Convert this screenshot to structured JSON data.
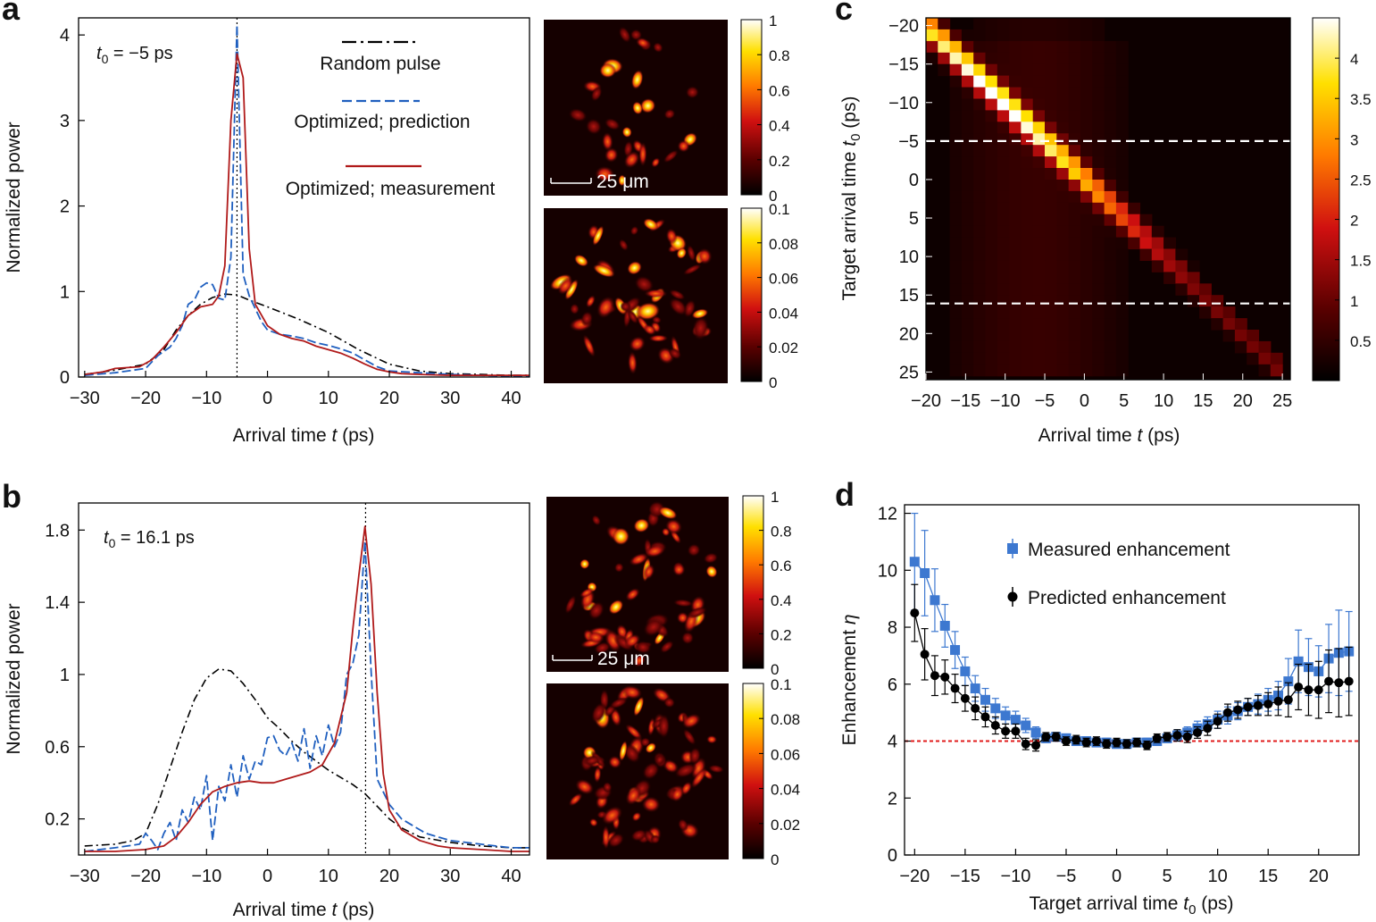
{
  "panels": [
    "a",
    "b",
    "c",
    "d"
  ],
  "chart_data": [
    {
      "panel": "a",
      "type": "line",
      "annotation_prefix": "t",
      "annotation_sub": "0",
      "annotation_value": " = −5 ps",
      "xlabel_main": "Arrival time ",
      "xlabel_var": "t",
      "xlabel_unit": " (ps)",
      "ylabel": "Normalized power",
      "xlim": [
        -31,
        43
      ],
      "ylim": [
        0,
        4.2
      ],
      "xticks": [
        -30,
        -20,
        -10,
        0,
        10,
        20,
        30,
        40
      ],
      "yticks": [
        0,
        1,
        2,
        3,
        4
      ],
      "xtick_labels": [
        "−30",
        "−20",
        "−10",
        "0",
        "10",
        "20",
        "30",
        "40"
      ],
      "ytick_labels": [
        "0",
        "1",
        "2",
        "3",
        "4"
      ],
      "marker_line_x": -5,
      "legend": [
        "Random pulse",
        "Optimized; prediction",
        "Optimized; measurement"
      ],
      "series": [
        {
          "name": "Random pulse",
          "style": "dashdot",
          "color": "#000000",
          "x": [
            -30,
            -25,
            -20,
            -17,
            -15,
            -13,
            -11,
            -9,
            -7,
            -5,
            -3,
            0,
            5,
            10,
            15,
            20,
            25,
            30,
            35,
            40,
            43
          ],
          "y": [
            0.03,
            0.08,
            0.15,
            0.32,
            0.55,
            0.72,
            0.85,
            0.93,
            0.97,
            0.96,
            0.9,
            0.82,
            0.68,
            0.52,
            0.32,
            0.15,
            0.07,
            0.04,
            0.03,
            0.02,
            0.02
          ]
        },
        {
          "name": "Optimized; prediction",
          "style": "dashed",
          "color": "#1f5fbf",
          "x": [
            -30,
            -25,
            -20,
            -18,
            -16,
            -15,
            -14,
            -13,
            -12,
            -11,
            -10,
            -9,
            -8,
            -7,
            -6,
            -5,
            -4,
            -3,
            -2,
            -1,
            0,
            2,
            4,
            6,
            8,
            10,
            12,
            14,
            16,
            18,
            20,
            25,
            30,
            35,
            40,
            43
          ],
          "y": [
            0.02,
            0.05,
            0.1,
            0.25,
            0.35,
            0.45,
            0.6,
            0.85,
            0.9,
            1.05,
            1.1,
            1.08,
            0.92,
            0.9,
            1.4,
            4.12,
            1.2,
            0.95,
            0.8,
            0.65,
            0.55,
            0.5,
            0.48,
            0.45,
            0.4,
            0.37,
            0.33,
            0.28,
            0.2,
            0.12,
            0.07,
            0.05,
            0.03,
            0.02,
            0.01,
            0.01
          ]
        },
        {
          "name": "Optimized; measurement",
          "style": "solid",
          "color": "#b01a1a",
          "x": [
            -30,
            -27,
            -25,
            -21,
            -19,
            -17,
            -15,
            -13,
            -11,
            -9,
            -8,
            -7,
            -6,
            -5,
            -4,
            -3,
            -2,
            0,
            2,
            4,
            6,
            8,
            10,
            12,
            14,
            16,
            18,
            20,
            22,
            25,
            30,
            35,
            40,
            43
          ],
          "y": [
            0.03,
            0.06,
            0.1,
            0.12,
            0.2,
            0.35,
            0.52,
            0.72,
            0.82,
            0.85,
            0.95,
            1.3,
            3.0,
            3.78,
            3.5,
            1.5,
            0.85,
            0.6,
            0.5,
            0.45,
            0.42,
            0.36,
            0.32,
            0.28,
            0.22,
            0.15,
            0.09,
            0.06,
            0.04,
            0.03,
            0.02,
            0.02,
            0.02,
            0.02
          ]
        }
      ]
    },
    {
      "panel": "b",
      "type": "line",
      "annotation_prefix": "t",
      "annotation_sub": "0",
      "annotation_value": " = 16.1 ps",
      "xlabel_main": "Arrival time ",
      "xlabel_var": "t",
      "xlabel_unit": " (ps)",
      "ylabel": "Normalized power",
      "xlim": [
        -31,
        43
      ],
      "ylim": [
        0,
        1.95
      ],
      "xticks": [
        -30,
        -20,
        -10,
        0,
        10,
        20,
        30,
        40
      ],
      "yticks": [
        0.2,
        0.6,
        1,
        1.4,
        1.8
      ],
      "xtick_labels": [
        "−30",
        "−20",
        "−10",
        "0",
        "10",
        "20",
        "30",
        "40"
      ],
      "ytick_labels": [
        "0.2",
        "0.6",
        "1",
        "1.4",
        "1.8"
      ],
      "marker_line_x": 16.1,
      "series": [
        {
          "name": "Random pulse",
          "style": "dashdot",
          "color": "#000000",
          "x": [
            -30,
            -25,
            -22,
            -20,
            -18,
            -16,
            -14,
            -12,
            -10,
            -8,
            -6,
            -4,
            -2,
            0,
            2,
            4,
            6,
            8,
            10,
            12,
            14,
            16,
            18,
            20,
            22,
            25,
            30,
            35,
            40,
            43
          ],
          "y": [
            0.05,
            0.06,
            0.08,
            0.12,
            0.28,
            0.48,
            0.68,
            0.86,
            0.98,
            1.03,
            1.02,
            0.95,
            0.86,
            0.76,
            0.7,
            0.63,
            0.57,
            0.52,
            0.47,
            0.43,
            0.39,
            0.34,
            0.27,
            0.2,
            0.15,
            0.1,
            0.07,
            0.05,
            0.04,
            0.04
          ]
        },
        {
          "name": "Optimized; prediction",
          "style": "dashed",
          "color": "#1f5fbf",
          "x": [
            -30,
            -25,
            -21,
            -20,
            -19,
            -18,
            -17,
            -16,
            -15,
            -14,
            -13,
            -12,
            -11,
            -10,
            -9,
            -8,
            -7,
            -6,
            -5,
            -4,
            -3,
            -2,
            -1,
            0,
            1,
            2,
            3,
            4,
            5,
            6,
            7,
            8,
            9,
            10,
            11,
            12,
            13,
            14,
            15,
            16,
            17,
            18,
            19,
            20,
            22,
            24,
            26,
            28,
            30,
            35,
            40,
            43
          ],
          "y": [
            0.02,
            0.04,
            0.06,
            0.12,
            0.08,
            0.03,
            0.12,
            0.18,
            0.08,
            0.25,
            0.18,
            0.32,
            0.25,
            0.44,
            0.08,
            0.38,
            0.3,
            0.5,
            0.32,
            0.55,
            0.42,
            0.52,
            0.5,
            0.65,
            0.66,
            0.58,
            0.55,
            0.62,
            0.52,
            0.7,
            0.48,
            0.66,
            0.55,
            0.72,
            0.6,
            0.68,
            1.0,
            1.06,
            1.22,
            1.74,
            1.02,
            0.42,
            0.35,
            0.28,
            0.2,
            0.16,
            0.12,
            0.1,
            0.08,
            0.06,
            0.04,
            0.04
          ]
        },
        {
          "name": "Optimized; measurement",
          "style": "solid",
          "color": "#b01a1a",
          "x": [
            -30,
            -25,
            -20,
            -17,
            -15,
            -13,
            -11,
            -9,
            -7,
            -5,
            -3,
            -1,
            1,
            3,
            5,
            7,
            9,
            11,
            13,
            14,
            15,
            16,
            17,
            18,
            19,
            20,
            22,
            25,
            28,
            30,
            35,
            40,
            43
          ],
          "y": [
            0.02,
            0.02,
            0.03,
            0.05,
            0.1,
            0.18,
            0.28,
            0.35,
            0.38,
            0.4,
            0.41,
            0.4,
            0.4,
            0.42,
            0.44,
            0.46,
            0.5,
            0.62,
            0.9,
            1.25,
            1.55,
            1.82,
            1.5,
            0.9,
            0.45,
            0.25,
            0.14,
            0.08,
            0.05,
            0.04,
            0.03,
            0.02,
            0.02
          ]
        }
      ]
    },
    {
      "panel": "a-images",
      "type": "heatmap",
      "scale_bar_label": "25 μm",
      "top_colorbar_ticks": [
        "1",
        "0.8",
        "0.6",
        "0.4",
        "0.2",
        "0"
      ],
      "bottom_colorbar_ticks": [
        "0.1",
        "0.08",
        "0.06",
        "0.04",
        "0.02",
        "0"
      ]
    },
    {
      "panel": "b-images",
      "type": "heatmap",
      "scale_bar_label": "25 μm",
      "top_colorbar_ticks": [
        "1",
        "0.8",
        "0.6",
        "0.4",
        "0.2",
        "0"
      ],
      "bottom_colorbar_ticks": [
        "0.1",
        "0.08",
        "0.06",
        "0.04",
        "0.02",
        "0"
      ]
    },
    {
      "panel": "c",
      "type": "heatmap",
      "xlabel_main": "Arrival time ",
      "xlabel_var": "t",
      "xlabel_unit": " (ps)",
      "ylabel_main": "Target arrival time ",
      "ylabel_var": "t",
      "ylabel_sub": "0",
      "ylabel_unit": " (ps)",
      "xlim": [
        -20,
        26
      ],
      "ylim": [
        -21,
        26
      ],
      "xticks": [
        -20,
        -15,
        -10,
        -5,
        0,
        5,
        10,
        15,
        20,
        25
      ],
      "yticks": [
        -20,
        -15,
        -10,
        -5,
        0,
        5,
        10,
        15,
        20,
        25
      ],
      "xtick_labels": [
        "−20",
        "−15",
        "−10",
        "−5",
        "0",
        "5",
        "10",
        "15",
        "20",
        "25"
      ],
      "ytick_labels": [
        "−20",
        "−15",
        "−10",
        "−5",
        "0",
        "5",
        "10",
        "15",
        "20",
        "25"
      ],
      "colorbar_ticks": [
        0.5,
        1,
        1.5,
        2,
        2.5,
        3,
        3.5,
        4
      ],
      "colorbar_labels": [
        "0.5",
        "1",
        "1.5",
        "2",
        "2.5",
        "3",
        "3.5",
        "4"
      ],
      "colorbar_range": [
        0,
        4.5
      ],
      "dashed_lines_t0": [
        -5,
        16.1
      ]
    },
    {
      "panel": "d",
      "type": "scatter",
      "xlabel_main": "Target arrival time ",
      "xlabel_var": "t",
      "xlabel_sub": "0",
      "xlabel_unit": " (ps)",
      "ylabel_main": "Enhancement ",
      "ylabel_var": "η",
      "xlim": [
        -21,
        24
      ],
      "ylim": [
        0,
        12.3
      ],
      "xticks": [
        -20,
        -15,
        -10,
        -5,
        0,
        5,
        10,
        15,
        20
      ],
      "yticks": [
        0,
        2,
        4,
        6,
        8,
        10,
        12
      ],
      "xtick_labels": [
        "−20",
        "−15",
        "−10",
        "−5",
        "0",
        "5",
        "10",
        "15",
        "20"
      ],
      "ytick_labels": [
        "0",
        "2",
        "4",
        "6",
        "8",
        "10",
        "12"
      ],
      "reference_line_y": 4,
      "legend": [
        "Measured enhancement",
        "Predicted enhancement"
      ],
      "series": [
        {
          "name": "Measured enhancement",
          "color": "#3d78d0",
          "marker": "square",
          "x": [
            -20,
            -19,
            -18,
            -17,
            -16,
            -15,
            -14,
            -13,
            -12,
            -11,
            -10,
            -9,
            -8,
            -7,
            -6,
            -5,
            -4,
            -3,
            -2,
            -1,
            0,
            1,
            2,
            3,
            4,
            5,
            6,
            7,
            8,
            9,
            10,
            11,
            12,
            13,
            14,
            15,
            16,
            17,
            18,
            19,
            20,
            21,
            22,
            23
          ],
          "y": [
            10.3,
            9.9,
            8.95,
            8.05,
            7.2,
            6.45,
            5.85,
            5.45,
            5.15,
            4.9,
            4.75,
            4.55,
            4.3,
            4.1,
            4.15,
            4.1,
            4.0,
            4.0,
            3.95,
            3.95,
            3.9,
            3.9,
            3.95,
            3.95,
            4.0,
            4.1,
            4.2,
            4.3,
            4.45,
            4.6,
            4.75,
            4.9,
            5.05,
            5.2,
            5.3,
            5.45,
            5.6,
            6.1,
            6.8,
            6.6,
            6.45,
            6.9,
            7.1,
            7.15
          ],
          "err": [
            1.7,
            1.5,
            1.1,
            0.75,
            0.65,
            0.5,
            0.45,
            0.4,
            0.35,
            0.3,
            0.3,
            0.25,
            0.2,
            0.15,
            0.15,
            0.15,
            0.15,
            0.15,
            0.15,
            0.15,
            0.15,
            0.15,
            0.15,
            0.15,
            0.15,
            0.15,
            0.2,
            0.2,
            0.25,
            0.25,
            0.3,
            0.3,
            0.3,
            0.3,
            0.35,
            0.4,
            0.5,
            0.8,
            1.1,
            1.0,
            0.9,
            1.2,
            1.5,
            1.4
          ]
        },
        {
          "name": "Predicted enhancement",
          "color": "#000000",
          "marker": "circle",
          "x": [
            -20,
            -19,
            -18,
            -17,
            -16,
            -15,
            -14,
            -13,
            -12,
            -11,
            -10,
            -9,
            -8,
            -7,
            -6,
            -5,
            -4,
            -3,
            -2,
            -1,
            0,
            1,
            2,
            3,
            4,
            5,
            6,
            7,
            8,
            9,
            10,
            11,
            12,
            13,
            14,
            15,
            16,
            17,
            18,
            19,
            20,
            21,
            22,
            23
          ],
          "y": [
            8.5,
            7.05,
            6.3,
            6.25,
            5.85,
            5.5,
            5.15,
            4.85,
            4.55,
            4.35,
            4.35,
            3.9,
            3.85,
            4.15,
            4.15,
            4.0,
            4.05,
            3.95,
            4.0,
            3.9,
            3.95,
            3.9,
            3.95,
            3.85,
            4.1,
            4.15,
            4.2,
            4.15,
            4.3,
            4.45,
            4.7,
            5.0,
            5.1,
            5.2,
            5.25,
            5.3,
            5.4,
            5.45,
            5.9,
            5.8,
            5.8,
            6.1,
            6.05,
            6.1
          ],
          "err": [
            1.0,
            0.9,
            0.7,
            0.6,
            0.5,
            0.45,
            0.4,
            0.35,
            0.3,
            0.25,
            0.25,
            0.2,
            0.2,
            0.15,
            0.15,
            0.15,
            0.15,
            0.15,
            0.15,
            0.15,
            0.15,
            0.15,
            0.15,
            0.15,
            0.15,
            0.15,
            0.2,
            0.2,
            0.2,
            0.25,
            0.25,
            0.3,
            0.3,
            0.3,
            0.35,
            0.4,
            0.5,
            0.6,
            0.8,
            0.9,
            1.0,
            1.1,
            1.2,
            1.2
          ]
        }
      ]
    }
  ]
}
